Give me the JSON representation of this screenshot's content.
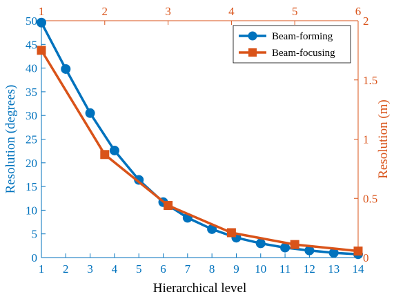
{
  "chart_data": {
    "type": "line",
    "xlabel": "Hierarchical level",
    "ylabel_left": "Resolution (degrees)",
    "ylabel_right": "Resolution (m)",
    "x_bottom": {
      "lim": [
        1,
        14
      ],
      "ticks": [
        1,
        2,
        3,
        4,
        5,
        6,
        7,
        8,
        9,
        10,
        11,
        12,
        13,
        14
      ],
      "tick_labels": [
        "1",
        "2",
        "3",
        "4",
        "5",
        "6",
        "7",
        "8",
        "9",
        "10",
        "11",
        "12",
        "13",
        "14"
      ],
      "color": "#0072BD"
    },
    "x_top": {
      "lim": [
        1,
        6
      ],
      "ticks": [
        1,
        2,
        3,
        4,
        5,
        6
      ],
      "tick_labels": [
        "1",
        "2",
        "3",
        "4",
        "5",
        "6"
      ],
      "color": "#D95319"
    },
    "y_left": {
      "lim": [
        0,
        50
      ],
      "ticks": [
        0,
        5,
        10,
        15,
        20,
        25,
        30,
        35,
        40,
        45,
        50
      ],
      "tick_labels": [
        "0",
        "5",
        "10",
        "15",
        "20",
        "25",
        "30",
        "35",
        "40",
        "45",
        "50"
      ],
      "color": "#0072BD"
    },
    "y_right": {
      "lim": [
        0,
        2
      ],
      "ticks": [
        0,
        0.5,
        1,
        1.5,
        2
      ],
      "tick_labels": [
        "0",
        "0.5",
        "1",
        "1.5",
        "2"
      ],
      "color": "#D95319"
    },
    "legend_position": "top-right",
    "grid": false,
    "series": [
      {
        "name": "Beam-forming",
        "axis": "bottom-left",
        "color": "#0072BD",
        "marker": "circle",
        "x": [
          1,
          2,
          3,
          4,
          5,
          6,
          7,
          8,
          9,
          10,
          11,
          12,
          13,
          14
        ],
        "y": [
          49.6,
          39.8,
          30.5,
          22.6,
          16.4,
          11.7,
          8.4,
          6.0,
          4.2,
          3.0,
          2.1,
          1.5,
          1.0,
          0.7
        ]
      },
      {
        "name": "Beam-focusing",
        "axis": "top-right",
        "color": "#D95319",
        "marker": "square",
        "x": [
          1,
          2,
          3,
          4,
          5,
          6
        ],
        "y": [
          1.75,
          0.87,
          0.44,
          0.21,
          0.11,
          0.055
        ]
      }
    ]
  }
}
